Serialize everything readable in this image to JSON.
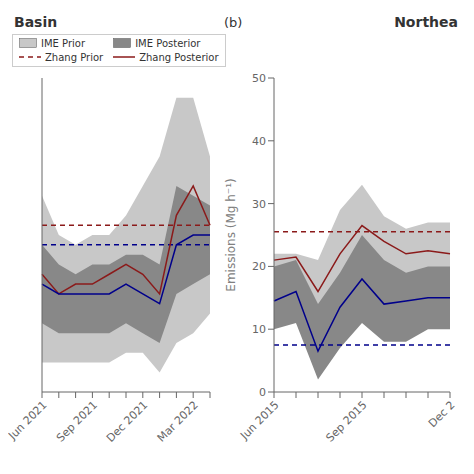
{
  "chart_data": [
    {
      "type": "line",
      "title": "Basin",
      "categories": [
        "Jun 2021",
        null,
        null,
        "Sep 2021",
        null,
        null,
        "Dec 2021",
        null,
        null,
        "Mar 2022",
        null
      ],
      "ylim": [
        14,
        46
      ],
      "yticks": [],
      "tick_labels": "x",
      "grid": false,
      "legend": "upper left",
      "series": [
        {
          "name": "IME Prior",
          "type": "band",
          "color": "#c8c8c8",
          "upper": [
            34,
            30,
            29,
            30,
            30,
            32,
            35,
            38,
            44,
            44,
            38
          ],
          "lower": [
            17,
            17,
            17,
            17,
            17,
            18,
            18,
            16,
            19,
            20,
            22
          ]
        },
        {
          "name": "IME Posterior",
          "type": "band",
          "color": "#888888",
          "upper": [
            29,
            27,
            26,
            27,
            27,
            28,
            28,
            27,
            35,
            34,
            33
          ],
          "lower": [
            21,
            20,
            20,
            20,
            20,
            21,
            20,
            19,
            24,
            25,
            26
          ]
        },
        {
          "name": "Zhang Prior",
          "type": "hline",
          "color": "#8b1a1a",
          "line_style": "dashed",
          "value": 31
        },
        {
          "type": "hline",
          "color": "#00008b",
          "line_style": "dashed",
          "value": 29
        },
        {
          "name": "Zhang Posterior",
          "type": "line",
          "color": "#8b1a1a",
          "line_style": "solid",
          "values": [
            26,
            24,
            25,
            25,
            26,
            27,
            26,
            24,
            32,
            35,
            31
          ]
        },
        {
          "type": "line",
          "color": "#00008b",
          "line_style": "solid",
          "values": [
            25,
            24,
            24,
            24,
            24,
            25,
            24,
            23,
            29,
            30,
            30
          ]
        }
      ]
    },
    {
      "type": "line",
      "title": "Northea",
      "annotations": [
        "(b)"
      ],
      "ylabel": "Emissions (Mg h⁻¹)",
      "categories": [
        "Jun 2015",
        null,
        null,
        null,
        "Sep 2015",
        null,
        null,
        null,
        "Dec 2"
      ],
      "ylim": [
        0,
        50
      ],
      "yticks": [
        0,
        10,
        20,
        30,
        40,
        50
      ],
      "grid": false,
      "series": [
        {
          "type": "band",
          "color": "#c8c8c8",
          "upper": [
            22,
            22,
            21,
            29,
            33,
            28,
            26,
            27,
            27
          ],
          "lower": [
            11,
            11,
            5,
            9,
            15,
            10,
            11,
            12,
            12
          ]
        },
        {
          "type": "band",
          "color": "#888888",
          "upper": [
            20,
            21,
            14,
            19,
            25,
            21,
            19,
            20,
            20
          ],
          "lower": [
            10,
            11,
            2,
            7,
            11,
            8,
            8,
            10,
            10
          ]
        },
        {
          "type": "hline",
          "color": "#8b1a1a",
          "line_style": "dashed",
          "value": 25.5
        },
        {
          "type": "hline",
          "color": "#00008b",
          "line_style": "dashed",
          "value": 7.5
        },
        {
          "type": "line",
          "color": "#8b1a1a",
          "line_style": "solid",
          "values": [
            21,
            21.5,
            16,
            22,
            26.5,
            24,
            22,
            22.5,
            22
          ]
        },
        {
          "type": "line",
          "color": "#00008b",
          "line_style": "solid",
          "values": [
            14.5,
            16,
            6.5,
            13.5,
            18,
            14,
            14.5,
            15,
            15
          ]
        }
      ]
    }
  ]
}
